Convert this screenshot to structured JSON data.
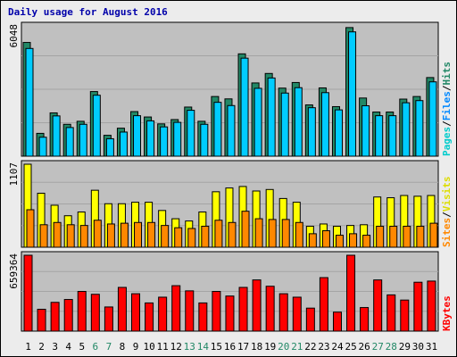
{
  "chart_data": {
    "type": "bar",
    "title": "Daily usage for August 2016",
    "categories": [
      "1",
      "2",
      "3",
      "4",
      "5",
      "6",
      "7",
      "8",
      "9",
      "10",
      "11",
      "12",
      "13",
      "14",
      "15",
      "16",
      "17",
      "18",
      "19",
      "20",
      "21",
      "22",
      "23",
      "24",
      "25",
      "26",
      "27",
      "28",
      "29",
      "30",
      "31"
    ],
    "weekend_days": [
      "6",
      "7",
      "13",
      "14",
      "20",
      "21",
      "27",
      "28"
    ],
    "panels": [
      {
        "id": "hits-files-pages",
        "ymax_label": "6048",
        "ymax": 6048,
        "legend": [
          {
            "text": "Pages",
            "color": "#00cccc"
          },
          {
            "text": "/",
            "color": "#000000"
          },
          {
            "text": "Files",
            "color": "#0088ff"
          },
          {
            "text": "/",
            "color": "#000000"
          },
          {
            "text": "Hits",
            "color": "#228866"
          }
        ],
        "series": [
          {
            "name": "Hits",
            "color": "#228866",
            "values": [
              5280,
              1060,
              2010,
              1480,
              1620,
              3000,
              970,
              1300,
              2070,
              1820,
              1500,
              1700,
              2280,
              1620,
              2770,
              2660,
              4750,
              3400,
              3840,
              3160,
              3420,
              2380,
              3170,
              2300,
              5970,
              2700,
              2050,
              2050,
              2650,
              2770,
              3650
            ]
          },
          {
            "name": "Files",
            "color": "#00ccff",
            "values": [
              5000,
              880,
              1870,
              1330,
              1480,
              2830,
              810,
              1120,
              1880,
              1640,
              1360,
              1570,
              2130,
              1480,
              2500,
              2350,
              4550,
              3150,
              3630,
              2930,
              3180,
              2250,
              2950,
              2150,
              5770,
              2340,
              1880,
              1880,
              2480,
              2580,
              3450
            ]
          },
          {
            "name": "Pages",
            "color": "#00cccc",
            "values": []
          }
        ]
      },
      {
        "id": "visits-sites",
        "ymax_label": "1107",
        "ymax": 1107,
        "legend": [
          {
            "text": "Sites",
            "color": "#ff8800"
          },
          {
            "text": "/",
            "color": "#000000"
          },
          {
            "text": "Visits",
            "color": "#dddd00"
          }
        ],
        "series": [
          {
            "name": "Visits",
            "color": "#ffff00",
            "values": [
              1107,
              720,
              560,
              420,
              470,
              760,
              580,
              580,
              600,
              600,
              490,
              380,
              350,
              470,
              740,
              790,
              810,
              750,
              770,
              650,
              600,
              280,
              310,
              280,
              290,
              300,
              670,
              660,
              690,
              680,
              690
            ]
          },
          {
            "name": "Sites",
            "color": "#ff8800",
            "values": [
              500,
              300,
              330,
              300,
              290,
              360,
              310,
              320,
              330,
              330,
              290,
              260,
              250,
              280,
              360,
              330,
              480,
              380,
              370,
              370,
              330,
              180,
              220,
              160,
              180,
              160,
              280,
              280,
              280,
              280,
              320
            ]
          }
        ]
      },
      {
        "id": "kbytes",
        "ymax_label": "659364",
        "ymax": 659364,
        "legend": [
          {
            "text": "KBytes",
            "color": "#ff0000"
          }
        ],
        "series": [
          {
            "name": "KBytes",
            "color": "#ff0000",
            "values": [
              659364,
              190000,
              250000,
              275000,
              345000,
              320000,
              210000,
              380000,
              325000,
              245000,
              295000,
              395000,
              350000,
              245000,
              345000,
              305000,
              380000,
              445000,
              390000,
              325000,
              295000,
              200000,
              465000,
              165000,
              659364,
              205000,
              445000,
              315000,
              270000,
              425000,
              435000
            ]
          }
        ]
      }
    ]
  }
}
